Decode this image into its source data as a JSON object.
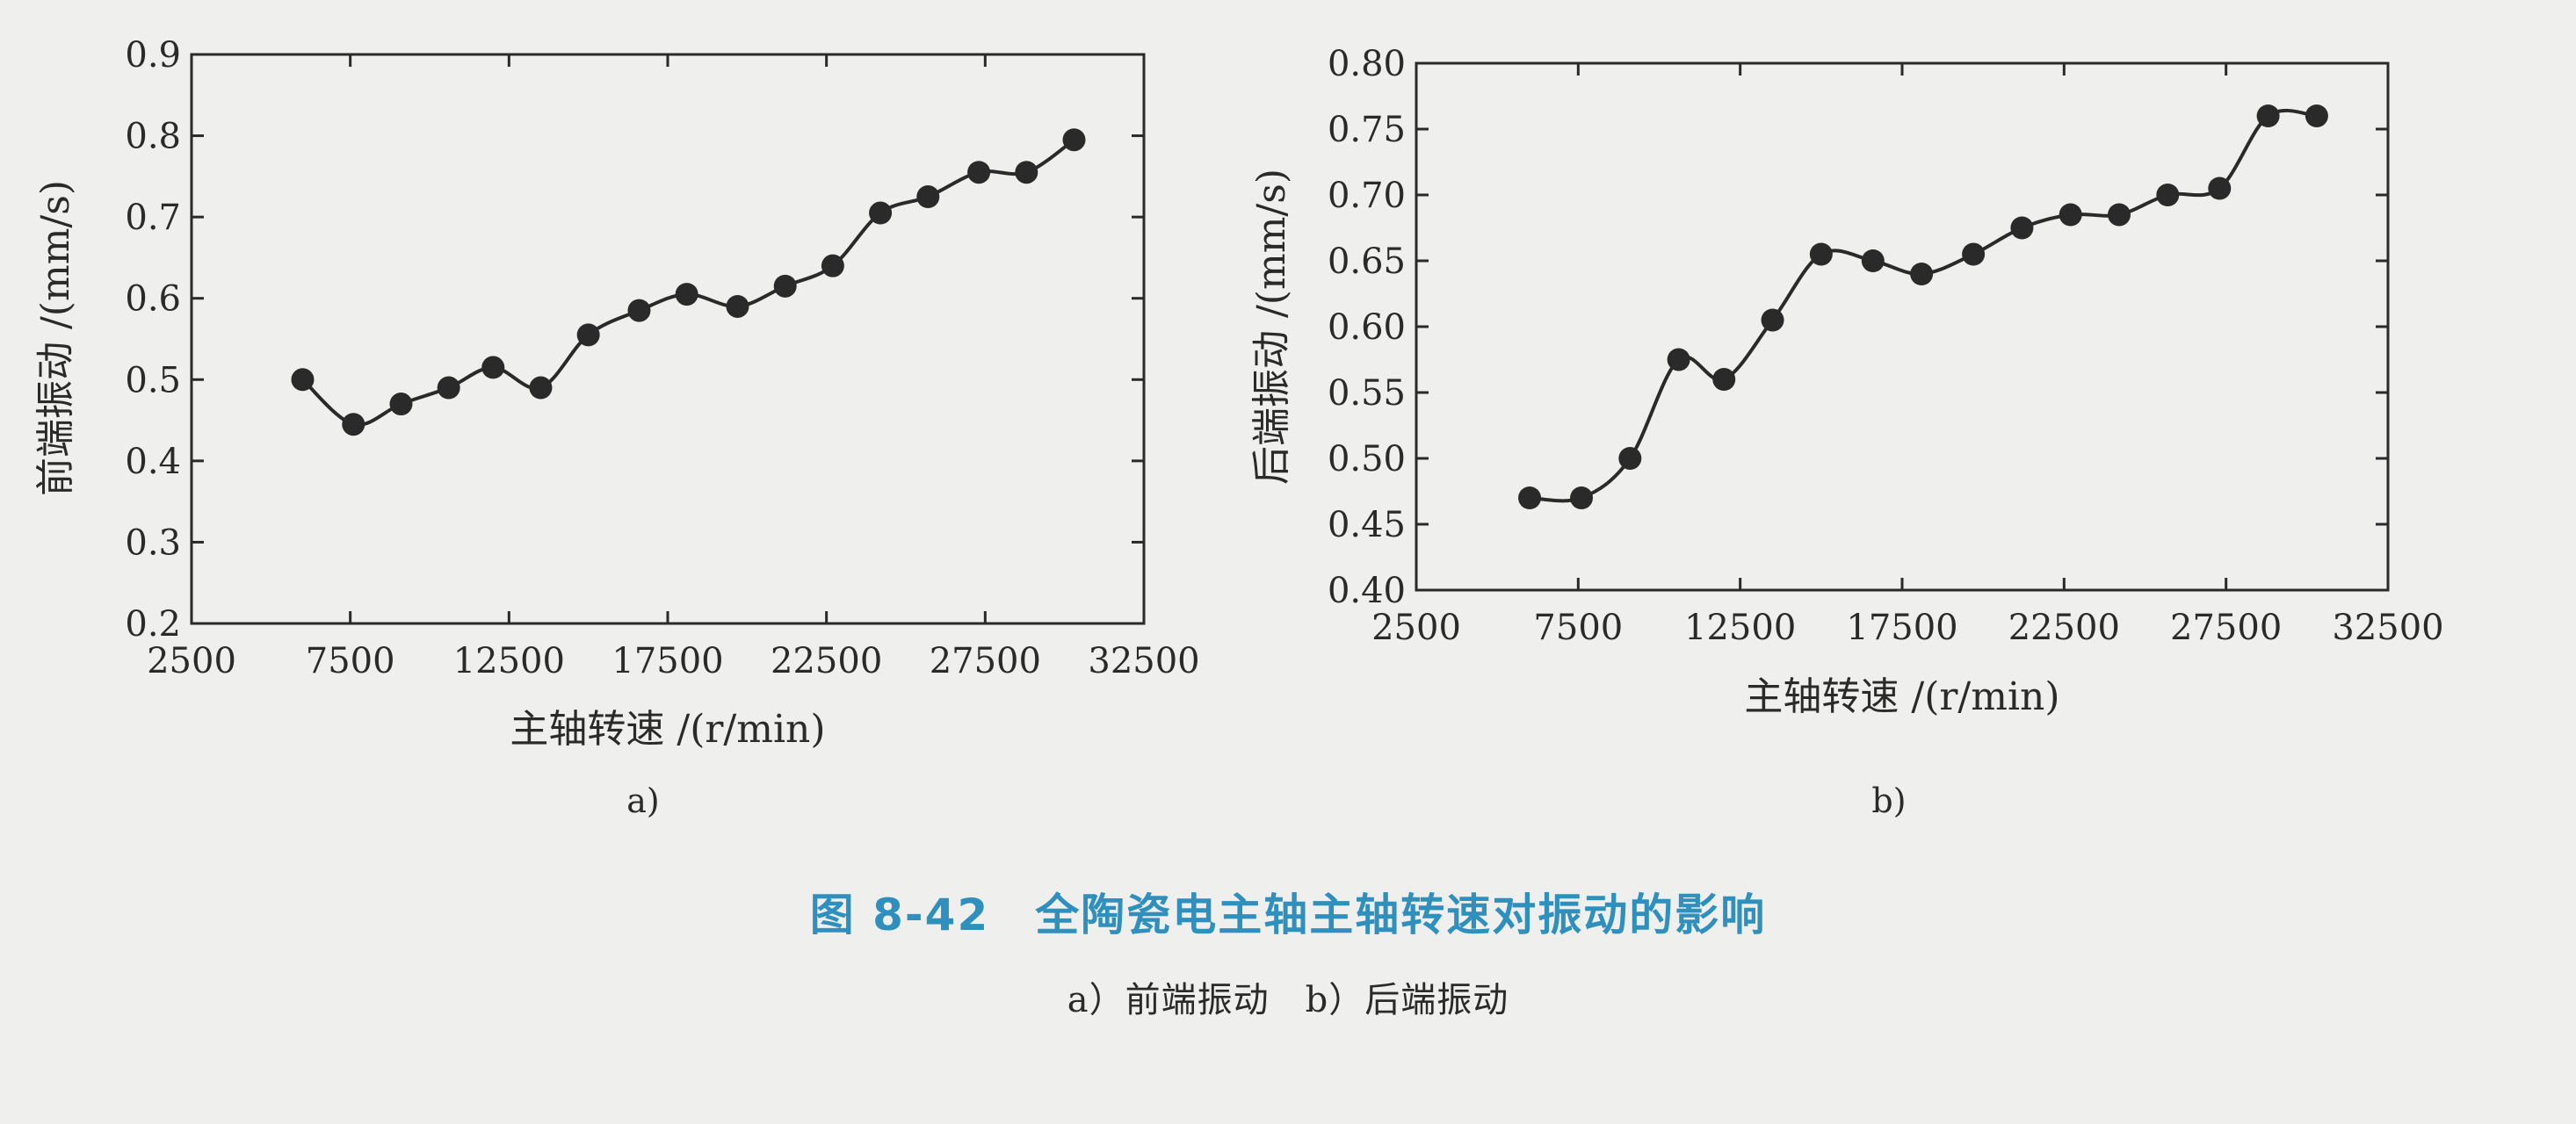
{
  "chart_data": [
    {
      "type": "line",
      "sub_label": "a)",
      "xlabel": "主轴转速 /(r/min)",
      "ylabel": "前端振动 /(mm/s)",
      "xlim": [
        2500,
        32500
      ],
      "ylim": [
        0.2,
        0.9
      ],
      "x_ticks": [
        2500,
        7500,
        12500,
        17500,
        22500,
        27500,
        32500
      ],
      "y_ticks": [
        "0.2",
        "0.3",
        "0.4",
        "0.5",
        "0.6",
        "0.7",
        "0.8",
        "0.9"
      ],
      "grid": false,
      "series": [
        {
          "x": [
            6000,
            7600,
            9100,
            10600,
            12000,
            13500,
            15000,
            16600,
            18100,
            19700,
            21200,
            22700,
            24200,
            25700,
            27300,
            28800,
            30300
          ],
          "y": [
            0.5,
            0.445,
            0.47,
            0.49,
            0.515,
            0.49,
            0.555,
            0.585,
            0.605,
            0.59,
            0.615,
            0.64,
            0.705,
            0.725,
            0.755,
            0.755,
            0.795
          ]
        }
      ]
    },
    {
      "type": "line",
      "sub_label": "b)",
      "xlabel": "主轴转速 /(r/min)",
      "ylabel": "后端振动 /(mm/s)",
      "xlim": [
        2500,
        32500
      ],
      "ylim": [
        0.4,
        0.8
      ],
      "x_ticks": [
        2500,
        7500,
        12500,
        17500,
        22500,
        27500,
        32500
      ],
      "y_ticks": [
        "0.40",
        "0.45",
        "0.50",
        "0.55",
        "0.60",
        "0.65",
        "0.70",
        "0.75",
        "0.80"
      ],
      "grid": false,
      "series": [
        {
          "x": [
            6000,
            7600,
            9100,
            10600,
            12000,
            13500,
            15000,
            16600,
            18100,
            19700,
            21200,
            22700,
            24200,
            25700,
            27300,
            28800,
            30300
          ],
          "y": [
            0.47,
            0.47,
            0.5,
            0.575,
            0.56,
            0.605,
            0.655,
            0.65,
            0.64,
            0.655,
            0.675,
            0.685,
            0.685,
            0.7,
            0.705,
            0.76,
            0.76
          ]
        }
      ]
    }
  ],
  "caption": {
    "title": "图 8-42　全陶瓷电主轴主轴转速对振动的影响",
    "subtitle": "a）前端振动　b）后端振动"
  },
  "colors": {
    "line": "#2a2a2a",
    "marker": "#2a2a2a",
    "caption_title": "#2f8fbd",
    "background": "#efefed"
  }
}
